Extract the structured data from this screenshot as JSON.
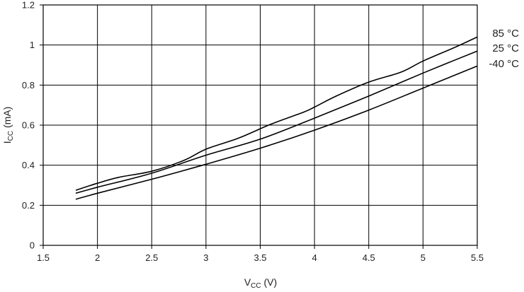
{
  "chart_data": {
    "type": "line",
    "xlabel": {
      "main": "V",
      "sub": "CC",
      "unit": " (V)"
    },
    "ylabel": {
      "main": "I",
      "sub": "CC",
      "unit": " (mA)"
    },
    "xlim": [
      1.5,
      5.5
    ],
    "ylim": [
      0,
      1.2
    ],
    "x_ticks": [
      "1.5",
      "2",
      "2.5",
      "3",
      "3.5",
      "4",
      "4.5",
      "5",
      "5.5"
    ],
    "y_ticks": [
      "0",
      "0.2",
      "0.4",
      "0.6",
      "0.8",
      "1",
      "1.2"
    ],
    "grid": true,
    "legend_placement": "right",
    "series": [
      {
        "name": "85 °C",
        "x": [
          1.8,
          2.0,
          2.2,
          2.5,
          2.8,
          3.0,
          3.3,
          3.6,
          3.9,
          4.0,
          4.2,
          4.5,
          4.8,
          5.0,
          5.3,
          5.5
        ],
        "y": [
          0.275,
          0.31,
          0.34,
          0.37,
          0.425,
          0.48,
          0.535,
          0.605,
          0.665,
          0.69,
          0.745,
          0.815,
          0.865,
          0.92,
          0.99,
          1.04
        ]
      },
      {
        "name": "25 °C",
        "x": [
          1.8,
          2.0,
          2.5,
          3.0,
          3.5,
          4.0,
          4.5,
          5.0,
          5.5
        ],
        "y": [
          0.26,
          0.29,
          0.36,
          0.45,
          0.53,
          0.635,
          0.745,
          0.86,
          0.97
        ]
      },
      {
        "name": "-40 °C",
        "x": [
          1.8,
          2.0,
          2.5,
          3.0,
          3.5,
          4.0,
          4.5,
          5.0,
          5.5
        ],
        "y": [
          0.23,
          0.26,
          0.33,
          0.405,
          0.485,
          0.575,
          0.675,
          0.785,
          0.895
        ]
      }
    ]
  }
}
